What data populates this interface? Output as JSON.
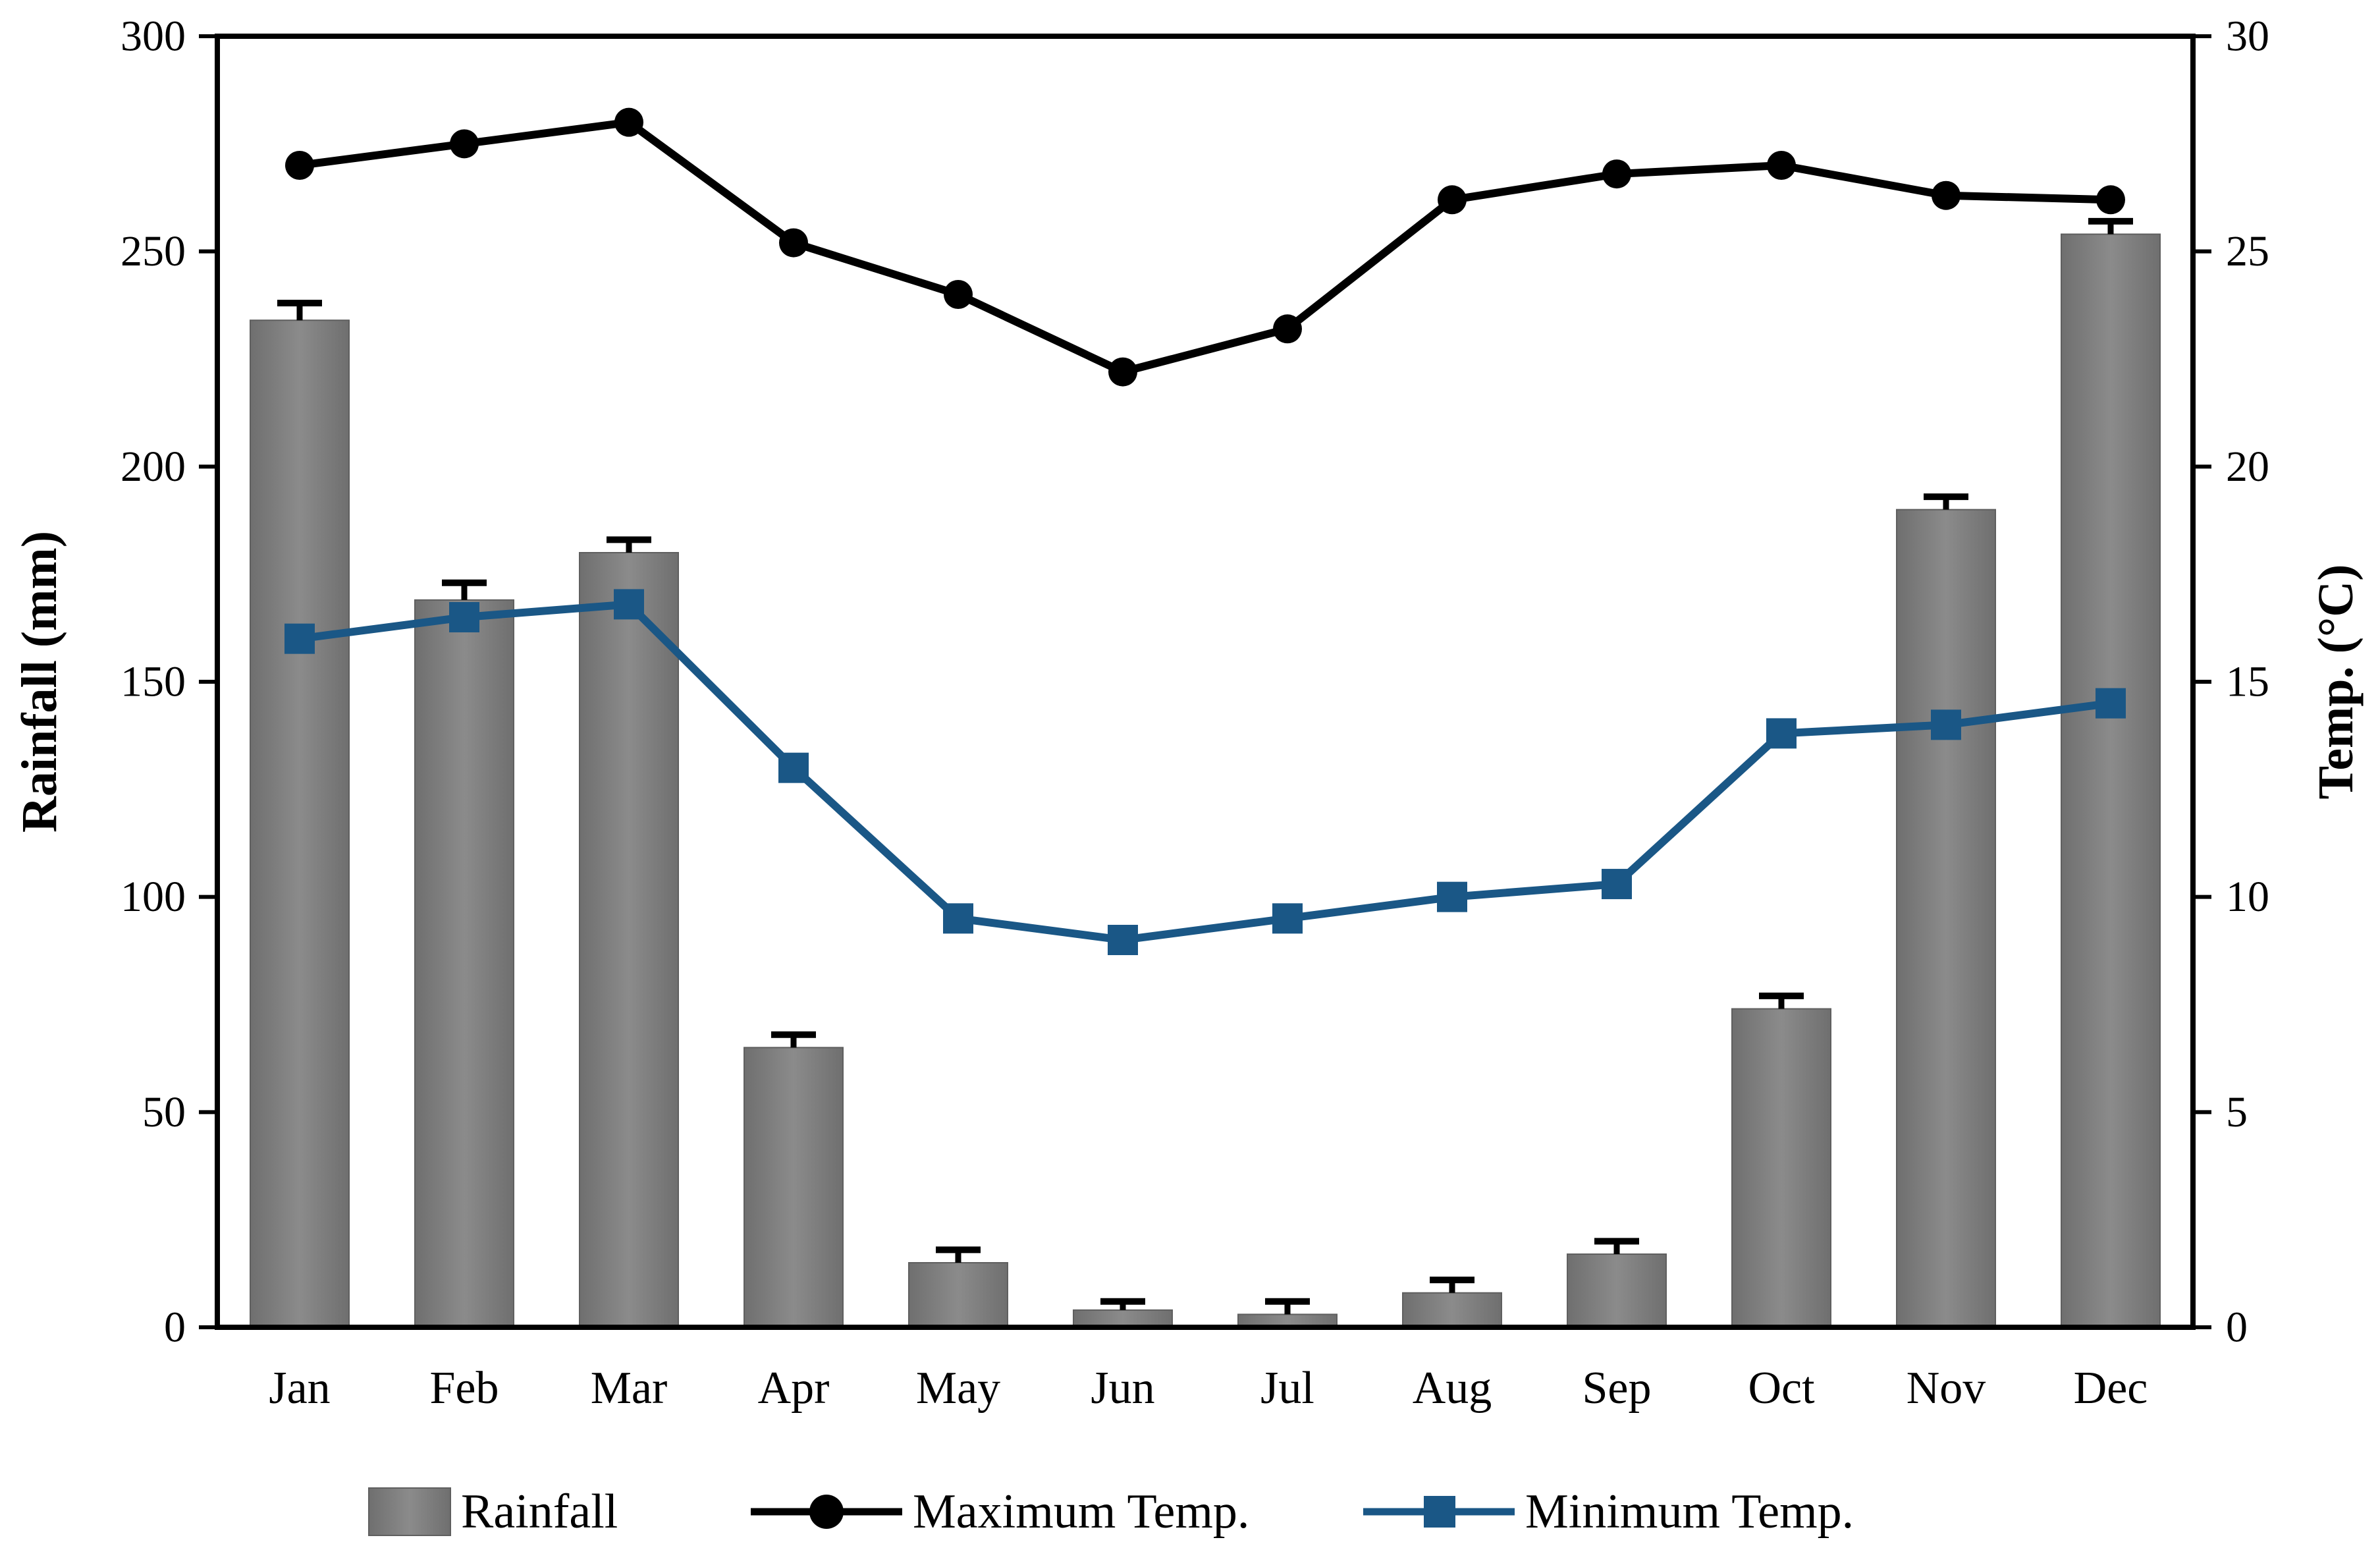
{
  "chart_data": {
    "type": "combo-bar-line",
    "title": "",
    "categories": [
      "Jan",
      "Feb",
      "Mar",
      "Apr",
      "May",
      "Jun",
      "Jul",
      "Aug",
      "Sep",
      "Oct",
      "Nov",
      "Dec"
    ],
    "series": [
      {
        "name": "Rainfall",
        "type": "bar",
        "axis": "left",
        "color": "#7F7F7F",
        "edge_color": "#5F5F5F",
        "values": [
          234,
          169,
          180,
          65,
          15,
          4,
          3,
          8,
          17,
          74,
          190,
          254
        ],
        "errors": [
          4,
          4,
          3,
          3,
          3,
          2,
          3,
          3,
          3,
          3,
          3,
          3
        ]
      },
      {
        "name": "Maximum Temp.",
        "type": "line",
        "marker": "circle",
        "axis": "right",
        "color": "#000000",
        "values": [
          27,
          27.5,
          28,
          25.2,
          24,
          22.2,
          23.2,
          26.2,
          26.8,
          27,
          26.3,
          26.2
        ]
      },
      {
        "name": "Minimum Temp.",
        "type": "line",
        "marker": "square",
        "axis": "right",
        "color": "#1A5786",
        "values": [
          16,
          16.5,
          16.8,
          13,
          9.5,
          9,
          9.5,
          10,
          10.3,
          13.8,
          14,
          14.5
        ]
      }
    ],
    "left_axis": {
      "label": "Rainfall (mm)",
      "min": 0,
      "max": 300,
      "step": 50,
      "tick_labels": [
        "300",
        "250",
        "200",
        "150",
        "100",
        "50",
        "0"
      ]
    },
    "right_axis": {
      "label": "Temp. (°C)",
      "min": 0,
      "max": 30,
      "step": 5,
      "tick_labels": [
        "30",
        "25",
        "20",
        "15",
        "10",
        "5",
        "0"
      ]
    },
    "legend": {
      "position": "bottom",
      "items": [
        {
          "label": "Rainfall",
          "swatch": "gray-rect"
        },
        {
          "label": "Maximum Temp.",
          "swatch": "black-line-circle"
        },
        {
          "label": "Minimum Temp.",
          "swatch": "blue-line-square"
        }
      ]
    },
    "grid": false,
    "background": "#FFFFFF",
    "axis_color": "#000000"
  }
}
